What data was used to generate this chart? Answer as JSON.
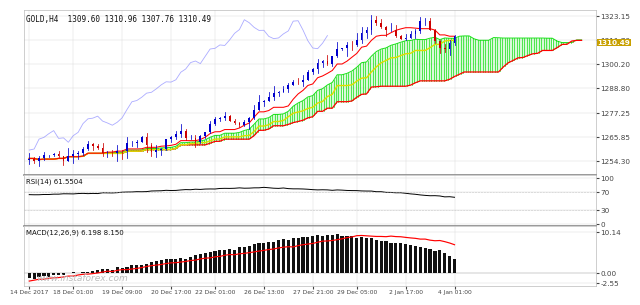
{
  "title": "GOLD,H4  1309.60 1310.96 1307.76 1310.49",
  "price_label": "1310.49",
  "rsi_label": "RSI(14) 61.5504",
  "macd_label": "MACD(12,26,9) 6.198 8.150",
  "watermark": "www.instaforex.com",
  "x_labels": [
    "14 Dec 2017",
    "18 Dec 01:00",
    "19 Dec 09:00",
    "20 Dec 17:00",
    "22 Dec 01:00",
    "26 Dec 13:00",
    "27 Dec 21:00",
    "29 Dec 05:00",
    "2 Jan 17:00",
    "4 Jan 01:00"
  ],
  "price_yticks": [
    1323.15,
    1311.7,
    1300.2,
    1288.8,
    1277.25,
    1265.85,
    1254.3
  ],
  "rsi_yticks": [
    100,
    70,
    30,
    0
  ],
  "macd_yticks": [
    10.138,
    0.0,
    -2.553
  ],
  "background_color": "#ffffff",
  "grid_color": "#d8d8d8",
  "candle_up_color": "#0000cc",
  "candle_down_color": "#cc0000",
  "cloud_bull_color": "#00dd00",
  "cloud_bear_color": "#ff0000",
  "tenkan_color": "#ff0000",
  "kijun_color": "#dddd00",
  "chikou_color": "#8888ff",
  "rsi_line_color": "#000000",
  "macd_hist_color": "#111111",
  "macd_signal_color": "#ff0000",
  "label_bg_color": "#c8a000",
  "price_ylim": [
    1248,
    1326
  ],
  "rsi_ylim": [
    -5,
    108
  ],
  "macd_ylim": [
    -3.2,
    11.5
  ],
  "n_bars": 88,
  "cloud_shift": 26
}
